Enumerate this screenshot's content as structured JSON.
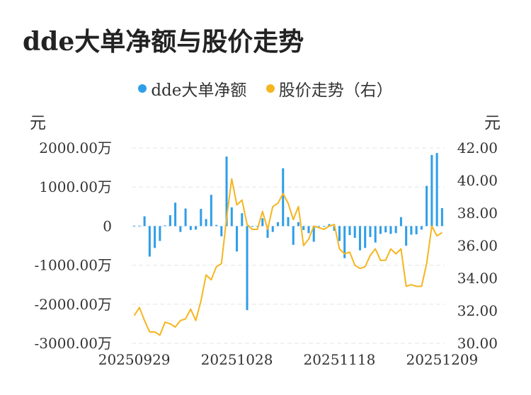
{
  "title": "dde大单净额与股价走势",
  "chart_data": {
    "type": "bar+line",
    "series": [
      {
        "name": "dde大单净额",
        "type": "bar",
        "axis": "left",
        "color": "#2f9ee8",
        "values": [
          10,
          10,
          250,
          -780,
          -560,
          -380,
          20,
          280,
          600,
          -150,
          450,
          -100,
          -90,
          440,
          180,
          800,
          30,
          -260,
          1780,
          480,
          -650,
          330,
          -2150,
          0,
          0,
          200,
          -300,
          -150,
          100,
          1480,
          230,
          -480,
          100,
          -100,
          -180,
          -400,
          0,
          0,
          50,
          -120,
          -380,
          -820,
          -230,
          -300,
          -620,
          -560,
          -280,
          -420,
          -200,
          -160,
          -200,
          -180,
          230,
          -500,
          -220,
          -210,
          -90,
          1030,
          1820,
          1870,
          460
        ]
      },
      {
        "name": "股价走势（右）",
        "type": "line",
        "axis": "right",
        "color": "#f5b51f",
        "values": [
          31.7,
          32.2,
          31.4,
          30.7,
          30.7,
          30.5,
          31.3,
          31.2,
          31.0,
          31.4,
          31.5,
          32.1,
          31.4,
          32.6,
          34.2,
          33.9,
          34.7,
          34.9,
          37.7,
          40.1,
          38.5,
          38.8,
          37.3,
          37.0,
          37.0,
          38.1,
          37.0,
          38.4,
          38.6,
          39.2,
          38.6,
          37.6,
          38.4,
          36.0,
          36.4,
          37.2,
          37.1,
          37.0,
          37.2,
          37.3,
          35.8,
          35.5,
          35.6,
          34.8,
          34.6,
          34.7,
          35.4,
          35.8,
          35.1,
          35.1,
          35.8,
          35.5,
          35.8,
          33.5,
          33.6,
          33.5,
          33.5,
          34.9,
          37.2,
          36.6,
          36.8
        ]
      }
    ],
    "x_tick_labels": [
      "20250929",
      "20251028",
      "20251118",
      "20251209"
    ],
    "x_tick_indices": [
      0,
      20,
      40,
      60
    ],
    "left_axis": {
      "unit": "元",
      "ylim": [
        -3000,
        2000
      ],
      "ticks": [
        2000,
        1000,
        0,
        -1000,
        -2000,
        -3000
      ],
      "tick_labels": [
        "2000.00万",
        "1000.00万",
        "0",
        "-1000.00万",
        "-2000.00万",
        "-3000.00万"
      ]
    },
    "right_axis": {
      "unit": "元",
      "ylim": [
        30,
        42
      ],
      "ticks": [
        42,
        40,
        38,
        36,
        34,
        32,
        30
      ],
      "tick_labels": [
        "42.00",
        "40.00",
        "38.00",
        "36.00",
        "34.00",
        "32.00",
        "30.00"
      ]
    },
    "grid": true,
    "legend_position": "top-center"
  }
}
